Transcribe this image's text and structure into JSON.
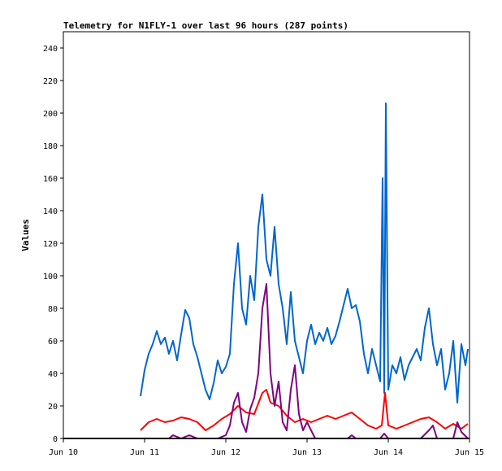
{
  "chart_data": {
    "type": "line",
    "title": "Telemetry for N1FLY-1 over last 96 hours (287 points)",
    "ylabel": "Values",
    "xlabel": "",
    "x_range": [
      "Jun 10",
      "Jun 15"
    ],
    "ylim": [
      0,
      250
    ],
    "y_ticks": [
      0,
      20,
      40,
      60,
      80,
      100,
      120,
      140,
      160,
      180,
      200,
      220,
      240
    ],
    "x_ticks": [
      "Jun 10",
      "Jun 11",
      "Jun 12",
      "Jun 13",
      "Jun 14",
      "Jun 15"
    ],
    "grid": false,
    "legend": "none",
    "series": [
      {
        "color": "#0066cc",
        "points": [
          [
            0.95,
            26
          ],
          [
            1.0,
            42
          ],
          [
            1.05,
            52
          ],
          [
            1.1,
            58
          ],
          [
            1.15,
            66
          ],
          [
            1.2,
            58
          ],
          [
            1.25,
            62
          ],
          [
            1.3,
            52
          ],
          [
            1.35,
            60
          ],
          [
            1.4,
            48
          ],
          [
            1.45,
            64
          ],
          [
            1.5,
            79
          ],
          [
            1.55,
            74
          ],
          [
            1.6,
            58
          ],
          [
            1.65,
            50
          ],
          [
            1.7,
            40
          ],
          [
            1.75,
            30
          ],
          [
            1.8,
            24
          ],
          [
            1.85,
            34
          ],
          [
            1.9,
            48
          ],
          [
            1.95,
            40
          ],
          [
            2.0,
            44
          ],
          [
            2.05,
            52
          ],
          [
            2.1,
            95
          ],
          [
            2.15,
            120
          ],
          [
            2.2,
            80
          ],
          [
            2.25,
            70
          ],
          [
            2.3,
            100
          ],
          [
            2.35,
            85
          ],
          [
            2.4,
            130
          ],
          [
            2.45,
            150
          ],
          [
            2.5,
            110
          ],
          [
            2.55,
            100
          ],
          [
            2.6,
            130
          ],
          [
            2.65,
            95
          ],
          [
            2.7,
            80
          ],
          [
            2.75,
            58
          ],
          [
            2.8,
            90
          ],
          [
            2.85,
            60
          ],
          [
            2.9,
            50
          ],
          [
            2.95,
            40
          ],
          [
            3.0,
            60
          ],
          [
            3.05,
            70
          ],
          [
            3.1,
            58
          ],
          [
            3.15,
            65
          ],
          [
            3.2,
            60
          ],
          [
            3.25,
            68
          ],
          [
            3.3,
            58
          ],
          [
            3.35,
            63
          ],
          [
            3.4,
            72
          ],
          [
            3.45,
            82
          ],
          [
            3.5,
            92
          ],
          [
            3.55,
            80
          ],
          [
            3.6,
            82
          ],
          [
            3.65,
            72
          ],
          [
            3.7,
            52
          ],
          [
            3.75,
            40
          ],
          [
            3.8,
            55
          ],
          [
            3.85,
            45
          ],
          [
            3.9,
            35
          ],
          [
            3.93,
            160
          ],
          [
            3.95,
            28
          ],
          [
            3.97,
            206
          ],
          [
            4.0,
            30
          ],
          [
            4.05,
            45
          ],
          [
            4.1,
            40
          ],
          [
            4.15,
            50
          ],
          [
            4.2,
            36
          ],
          [
            4.25,
            45
          ],
          [
            4.3,
            50
          ],
          [
            4.35,
            55
          ],
          [
            4.4,
            48
          ],
          [
            4.45,
            68
          ],
          [
            4.5,
            80
          ],
          [
            4.55,
            58
          ],
          [
            4.6,
            45
          ],
          [
            4.65,
            55
          ],
          [
            4.7,
            30
          ],
          [
            4.75,
            40
          ],
          [
            4.8,
            60
          ],
          [
            4.85,
            22
          ],
          [
            4.9,
            58
          ],
          [
            4.95,
            45
          ],
          [
            4.98,
            55
          ]
        ]
      },
      {
        "color": "#ff0000",
        "points": [
          [
            0.95,
            5
          ],
          [
            1.05,
            10
          ],
          [
            1.15,
            12
          ],
          [
            1.25,
            10
          ],
          [
            1.35,
            11
          ],
          [
            1.45,
            13
          ],
          [
            1.55,
            12
          ],
          [
            1.65,
            10
          ],
          [
            1.75,
            5
          ],
          [
            1.85,
            8
          ],
          [
            1.95,
            12
          ],
          [
            2.05,
            15
          ],
          [
            2.15,
            20
          ],
          [
            2.25,
            16
          ],
          [
            2.35,
            15
          ],
          [
            2.45,
            28
          ],
          [
            2.5,
            30
          ],
          [
            2.55,
            22
          ],
          [
            2.65,
            20
          ],
          [
            2.75,
            14
          ],
          [
            2.85,
            10
          ],
          [
            2.95,
            12
          ],
          [
            3.05,
            10
          ],
          [
            3.15,
            12
          ],
          [
            3.25,
            14
          ],
          [
            3.35,
            12
          ],
          [
            3.45,
            14
          ],
          [
            3.55,
            16
          ],
          [
            3.65,
            12
          ],
          [
            3.75,
            8
          ],
          [
            3.85,
            6
          ],
          [
            3.92,
            8
          ],
          [
            3.96,
            28
          ],
          [
            4.0,
            8
          ],
          [
            4.1,
            6
          ],
          [
            4.2,
            8
          ],
          [
            4.3,
            10
          ],
          [
            4.4,
            12
          ],
          [
            4.5,
            13
          ],
          [
            4.6,
            10
          ],
          [
            4.7,
            6
          ],
          [
            4.8,
            9
          ],
          [
            4.9,
            6
          ],
          [
            4.98,
            9
          ]
        ]
      },
      {
        "color": "#800080",
        "points": [
          [
            0.95,
            0
          ],
          [
            1.3,
            0
          ],
          [
            1.35,
            2
          ],
          [
            1.45,
            0
          ],
          [
            1.55,
            2
          ],
          [
            1.65,
            0
          ],
          [
            1.9,
            0
          ],
          [
            2.0,
            2
          ],
          [
            2.05,
            8
          ],
          [
            2.1,
            22
          ],
          [
            2.15,
            28
          ],
          [
            2.2,
            10
          ],
          [
            2.25,
            4
          ],
          [
            2.3,
            18
          ],
          [
            2.35,
            25
          ],
          [
            2.4,
            40
          ],
          [
            2.45,
            80
          ],
          [
            2.5,
            95
          ],
          [
            2.55,
            40
          ],
          [
            2.6,
            20
          ],
          [
            2.65,
            35
          ],
          [
            2.7,
            10
          ],
          [
            2.75,
            5
          ],
          [
            2.8,
            30
          ],
          [
            2.85,
            45
          ],
          [
            2.9,
            15
          ],
          [
            2.95,
            5
          ],
          [
            3.0,
            10
          ],
          [
            3.05,
            5
          ],
          [
            3.1,
            0
          ],
          [
            3.5,
            0
          ],
          [
            3.55,
            2
          ],
          [
            3.6,
            0
          ],
          [
            3.9,
            0
          ],
          [
            3.95,
            3
          ],
          [
            4.0,
            0
          ],
          [
            4.4,
            0
          ],
          [
            4.5,
            5
          ],
          [
            4.55,
            8
          ],
          [
            4.6,
            0
          ],
          [
            4.8,
            0
          ],
          [
            4.85,
            10
          ],
          [
            4.9,
            4
          ],
          [
            4.98,
            0
          ]
        ]
      },
      {
        "color": "#000000",
        "points": [
          [
            0.0,
            0
          ],
          [
            5.0,
            0
          ]
        ]
      }
    ]
  }
}
